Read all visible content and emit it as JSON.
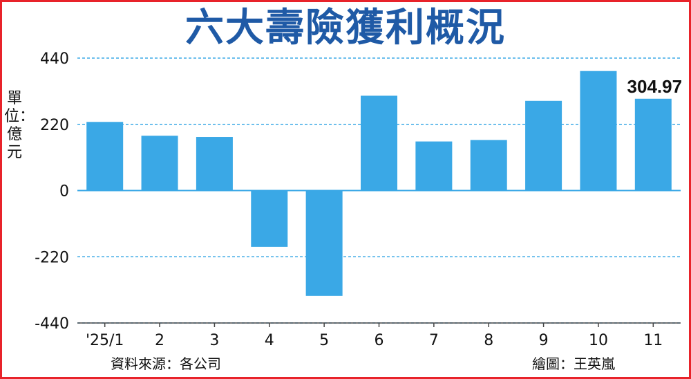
{
  "title": "六大壽險獲利概況",
  "unit_label": "單位：億元",
  "source": "資料來源：各公司",
  "credit": "繪圖：王英嵐",
  "colors": {
    "bar": "#3aa8e6",
    "grid": "#3aa8e6",
    "title": "#1f5aa6",
    "frame": "#e8232a"
  },
  "chart_data": {
    "type": "bar",
    "title": "六大壽險獲利概況",
    "ylabel": "單位：億元",
    "ylim": [
      -440,
      440
    ],
    "yticks": [
      440,
      220,
      0,
      -220,
      -440
    ],
    "categories": [
      "'25/1",
      "2",
      "3",
      "4",
      "5",
      "6",
      "7",
      "8",
      "9",
      "10",
      "11"
    ],
    "values": [
      228,
      182,
      178,
      -187,
      -350,
      315,
      163,
      168,
      298,
      397,
      304.97
    ],
    "annotations": [
      {
        "category": "11",
        "text": "304.97"
      }
    ],
    "grid": true,
    "grid_style": "dashed horizontal"
  }
}
